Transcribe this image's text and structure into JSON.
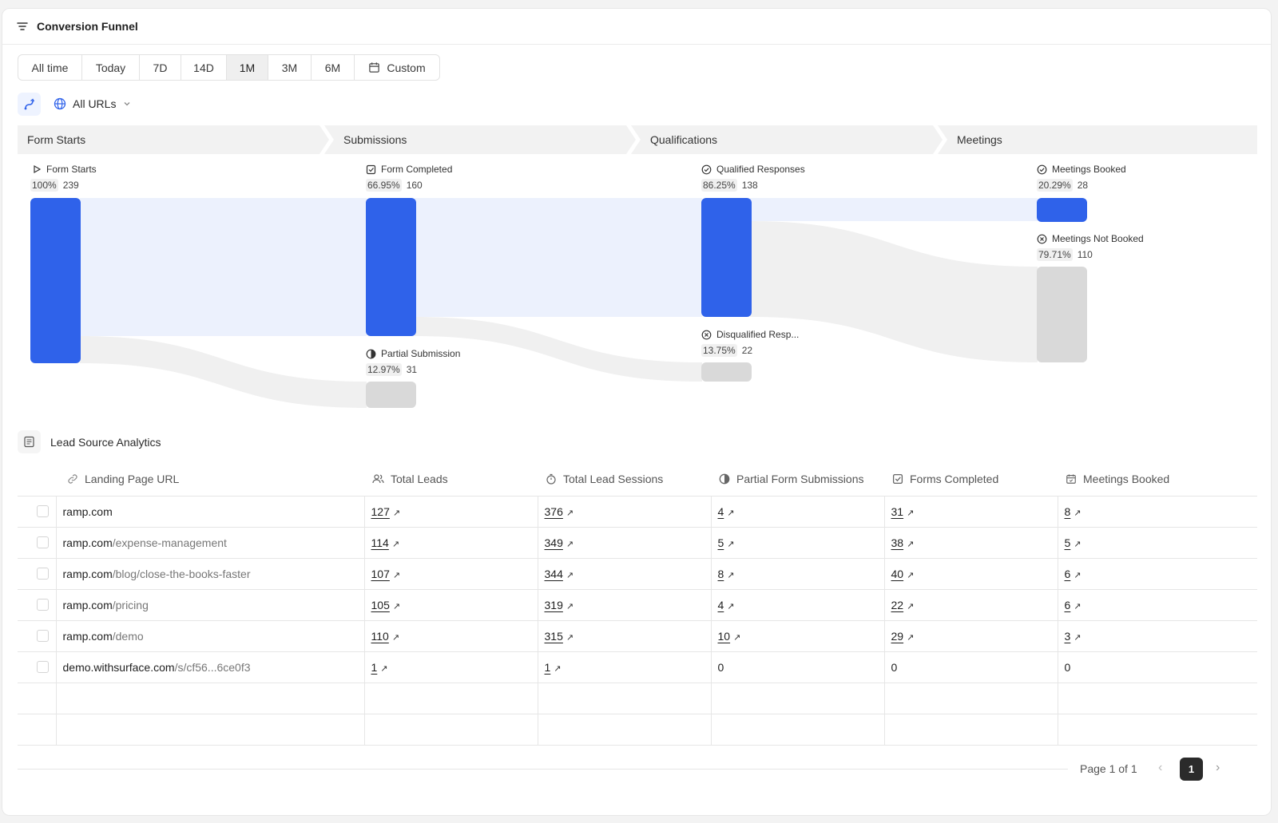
{
  "header": {
    "title": "Conversion Funnel"
  },
  "range": {
    "options": [
      "All time",
      "Today",
      "7D",
      "14D",
      "1M",
      "3M",
      "6M",
      "Custom"
    ],
    "selected": "1M"
  },
  "url_filter": {
    "label": "All URLs"
  },
  "stages": [
    "Form Starts",
    "Submissions",
    "Qualifications",
    "Meetings"
  ],
  "funnel": {
    "form_starts": {
      "label": "Form Starts",
      "pct": "100%",
      "count": "239"
    },
    "form_completed": {
      "label": "Form Completed",
      "pct": "66.95%",
      "count": "160"
    },
    "partial_submission": {
      "label": "Partial Submission",
      "pct": "12.97%",
      "count": "31"
    },
    "qualified": {
      "label": "Qualified Responses",
      "pct": "86.25%",
      "count": "138"
    },
    "disqualified": {
      "label": "Disqualified Resp...",
      "pct": "13.75%",
      "count": "22"
    },
    "booked": {
      "label": "Meetings Booked",
      "pct": "20.29%",
      "count": "28"
    },
    "not_booked": {
      "label": "Meetings Not Booked",
      "pct": "79.71%",
      "count": "110"
    }
  },
  "lead_source": {
    "title": "Lead Source Analytics",
    "columns": [
      "Landing Page URL",
      "Total Leads",
      "Total Lead Sessions",
      "Partial Form Submissions",
      "Forms Completed",
      "Meetings Booked"
    ],
    "rows": [
      {
        "host": "ramp.com",
        "path": "",
        "leads": "127",
        "sessions": "376",
        "partial": "4",
        "completed": "31",
        "meetings": "8",
        "link": [
          true,
          true,
          true,
          true,
          true
        ]
      },
      {
        "host": "ramp.com",
        "path": "/expense-management",
        "leads": "114",
        "sessions": "349",
        "partial": "5",
        "completed": "38",
        "meetings": "5",
        "link": [
          true,
          true,
          true,
          true,
          true
        ]
      },
      {
        "host": "ramp.com",
        "path": "/blog/close-the-books-faster",
        "leads": "107",
        "sessions": "344",
        "partial": "8",
        "completed": "40",
        "meetings": "6",
        "link": [
          true,
          true,
          true,
          true,
          true
        ]
      },
      {
        "host": "ramp.com",
        "path": "/pricing",
        "leads": "105",
        "sessions": "319",
        "partial": "4",
        "completed": "22",
        "meetings": "6",
        "link": [
          true,
          true,
          true,
          true,
          true
        ]
      },
      {
        "host": "ramp.com",
        "path": "/demo",
        "leads": "110",
        "sessions": "315",
        "partial": "10",
        "completed": "29",
        "meetings": "3",
        "link": [
          true,
          true,
          true,
          true,
          true
        ]
      },
      {
        "host": "demo.withsurface.com",
        "path": "/s/cf56...6ce0f3",
        "leads": "1",
        "sessions": "1",
        "partial": "0",
        "completed": "0",
        "meetings": "0",
        "link": [
          true,
          true,
          false,
          false,
          false
        ]
      }
    ],
    "empty_rows": 2
  },
  "pagination": {
    "label": "Page 1 of 1",
    "current": "1"
  },
  "colors": {
    "accent": "#2f62ea",
    "flow": "#ecf1fd",
    "muted_node": "#d9d9d9",
    "muted_flow": "#f0f0f0"
  }
}
